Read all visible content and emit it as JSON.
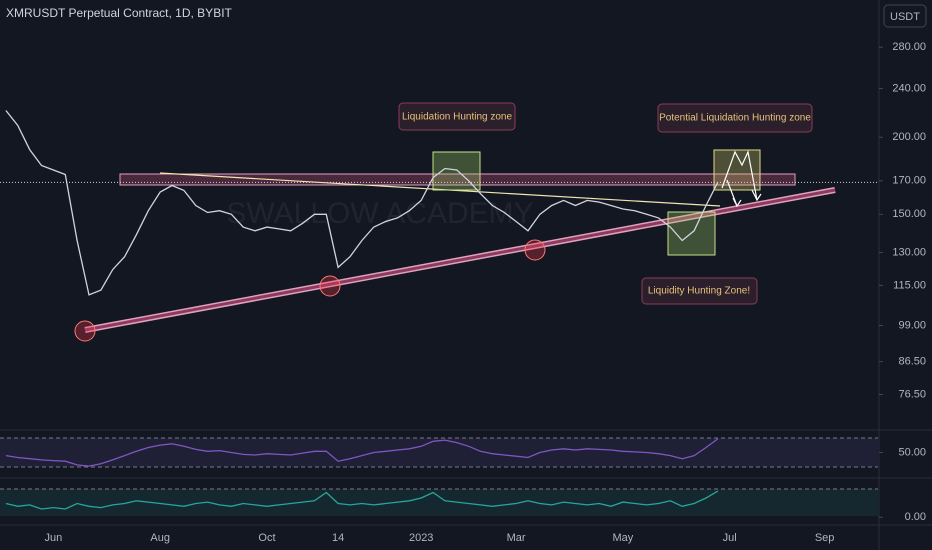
{
  "title": "XMRUSDT Perpetual Contract, 1D, BYBIT",
  "currency": "USDT",
  "watermark": "SWALLOW ACADEMY",
  "annotations": [
    "Liquidation Hunting zone",
    "Potential Liquidation Hunting zone",
    "Liquidity Hunting Zone!"
  ],
  "chart_data": [
    {
      "type": "line",
      "color": "#d1d4dc",
      "log_scale": true,
      "categories": [
        null,
        null,
        null,
        null,
        "Jun",
        null,
        null,
        null,
        null,
        null,
        null,
        null,
        null,
        "Aug",
        null,
        null,
        null,
        null,
        null,
        null,
        null,
        null,
        "Oct",
        null,
        null,
        null,
        null,
        null,
        "14",
        null,
        null,
        null,
        null,
        null,
        null,
        "2023",
        null,
        null,
        null,
        null,
        null,
        null,
        null,
        "Mar",
        null,
        null,
        null,
        null,
        null,
        null,
        null,
        null,
        "May",
        null,
        null,
        null,
        null,
        null,
        null,
        null,
        null,
        "Jul",
        null,
        null,
        null,
        null,
        null,
        null,
        null,
        "Sep",
        null,
        null,
        null,
        null
      ],
      "values": [
        221,
        209,
        191,
        180,
        177,
        174,
        136,
        111,
        113,
        122,
        128,
        139,
        152,
        163,
        167,
        164,
        155,
        151,
        152,
        150,
        143,
        141,
        143,
        142,
        141,
        145,
        150,
        150,
        123,
        128,
        136,
        143,
        146,
        148,
        152,
        158,
        172,
        178,
        177,
        170,
        162,
        155,
        151,
        146,
        141,
        150,
        155,
        158,
        155,
        158,
        157,
        155,
        153,
        152,
        150,
        148,
        143,
        136,
        141,
        155,
        169,
        null,
        null,
        null,
        null,
        null,
        null,
        null,
        null,
        null,
        null,
        null,
        null,
        null
      ],
      "ylim": [
        67,
        334
      ],
      "yticks": [
        {
          "value": 76.5,
          "label": "76.50"
        },
        {
          "value": 86.5,
          "label": "86.50"
        },
        {
          "value": 99,
          "label": "99.00"
        },
        {
          "value": 115,
          "label": "115.00"
        },
        {
          "value": 130,
          "label": "130.00"
        },
        {
          "value": 150,
          "label": "150.00"
        },
        {
          "value": 170,
          "label": "170.00"
        },
        {
          "value": 200,
          "label": "200.00"
        },
        {
          "value": 240,
          "label": "240.00"
        },
        {
          "value": 280,
          "label": "280.00"
        }
      ]
    },
    {
      "type": "line",
      "color": "#7e57c2",
      "values": [
        45,
        42,
        40,
        38,
        37,
        36,
        30,
        28,
        32,
        38,
        45,
        52,
        58,
        62,
        64,
        60,
        55,
        52,
        53,
        50,
        47,
        46,
        48,
        47,
        46,
        49,
        52,
        52,
        36,
        40,
        45,
        50,
        52,
        54,
        56,
        60,
        68,
        70,
        66,
        60,
        52,
        48,
        46,
        44,
        42,
        50,
        54,
        56,
        54,
        56,
        55,
        54,
        52,
        51,
        50,
        48,
        45,
        40,
        45,
        58,
        72,
        null,
        null,
        null,
        null,
        null,
        null,
        null,
        null,
        null,
        null,
        null,
        null,
        null
      ],
      "ylim": [
        25,
        75
      ],
      "yticks": [
        {
          "value": 50,
          "label": "50.00"
        }
      ]
    },
    {
      "type": "line",
      "color": "#26a69a",
      "values": [
        0.5,
        0.4,
        0.45,
        0.3,
        0.35,
        0.3,
        0.5,
        0.4,
        0.35,
        0.45,
        0.5,
        0.6,
        0.55,
        0.5,
        0.45,
        0.4,
        0.5,
        0.55,
        0.45,
        0.4,
        0.5,
        0.45,
        0.4,
        0.45,
        0.5,
        0.55,
        0.6,
        0.9,
        0.5,
        0.45,
        0.5,
        0.45,
        0.5,
        0.55,
        0.6,
        0.7,
        0.9,
        0.6,
        0.55,
        0.5,
        0.45,
        0.4,
        0.45,
        0.5,
        0.6,
        0.5,
        0.45,
        0.55,
        0.5,
        0.45,
        0.5,
        0.4,
        0.55,
        0.5,
        0.45,
        0.5,
        0.6,
        0.4,
        0.5,
        0.7,
        0.95,
        null,
        null,
        null,
        null,
        null,
        null,
        null,
        null,
        null,
        null,
        null,
        null,
        null
      ],
      "ylim": [
        -0.1,
        1.1
      ],
      "yticks": [
        {
          "value": 0,
          "label": "0.00"
        }
      ]
    }
  ]
}
